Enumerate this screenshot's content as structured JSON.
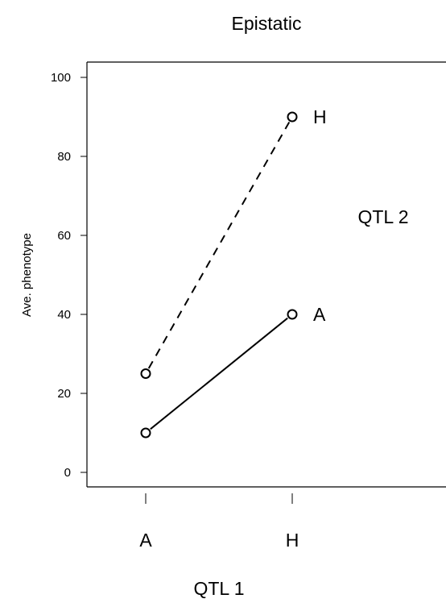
{
  "chart_data": {
    "type": "line",
    "title": "Epistatic",
    "xlabel": "QTL 1",
    "ylabel": "Ave. phenotype",
    "legend_title": "QTL 2",
    "categories": [
      "A",
      "H"
    ],
    "ylim": [
      0,
      100
    ],
    "yticks": [
      "0",
      "20",
      "40",
      "60",
      "80",
      "100"
    ],
    "series": [
      {
        "name": "H",
        "values": [
          25,
          90
        ],
        "style": "dashed"
      },
      {
        "name": "A",
        "values": [
          10,
          40
        ],
        "style": "solid"
      }
    ]
  }
}
